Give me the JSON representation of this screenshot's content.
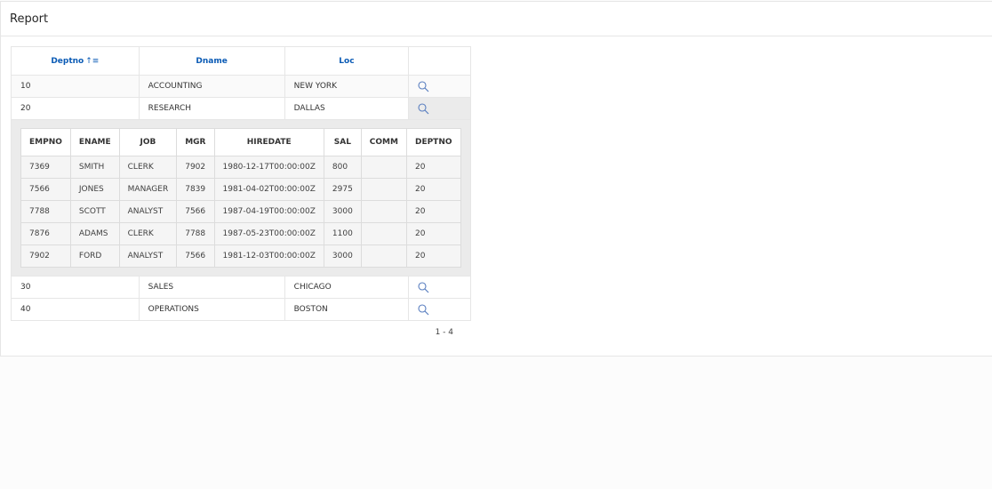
{
  "region": {
    "title": "Report"
  },
  "master": {
    "columns": [
      "Deptno",
      "Dname",
      "Loc"
    ],
    "sort": {
      "column": "Deptno",
      "direction": "ascending",
      "icon": "sort-ascending-icon"
    },
    "rows": [
      {
        "deptno": "10",
        "dname": "ACCOUNTING",
        "loc": "NEW YORK",
        "expanded": false
      },
      {
        "deptno": "20",
        "dname": "RESEARCH",
        "loc": "DALLAS",
        "expanded": true
      },
      {
        "deptno": "30",
        "dname": "SALES",
        "loc": "CHICAGO",
        "expanded": false
      },
      {
        "deptno": "40",
        "dname": "OPERATIONS",
        "loc": "BOSTON",
        "expanded": false
      }
    ],
    "action_icon": "search-icon"
  },
  "detail": {
    "columns": [
      "EMPNO",
      "ENAME",
      "JOB",
      "MGR",
      "HIREDATE",
      "SAL",
      "COMM",
      "DEPTNO"
    ],
    "rows": [
      [
        "7369",
        "SMITH",
        "CLERK",
        "7902",
        "1980-12-17T00:00:00Z",
        "800",
        "",
        "20"
      ],
      [
        "7566",
        "JONES",
        "MANAGER",
        "7839",
        "1981-04-02T00:00:00Z",
        "2975",
        "",
        "20"
      ],
      [
        "7788",
        "SCOTT",
        "ANALYST",
        "7566",
        "1987-04-19T00:00:00Z",
        "3000",
        "",
        "20"
      ],
      [
        "7876",
        "ADAMS",
        "CLERK",
        "7788",
        "1987-05-23T00:00:00Z",
        "1100",
        "",
        "20"
      ],
      [
        "7902",
        "FORD",
        "ANALYST",
        "7566",
        "1981-12-03T00:00:00Z",
        "3000",
        "",
        "20"
      ]
    ]
  },
  "pagination": {
    "range": "1 - 4"
  },
  "colors": {
    "link": "#0b5bb5",
    "icon": "#5a7fc0",
    "panel": "#ebebeb"
  }
}
